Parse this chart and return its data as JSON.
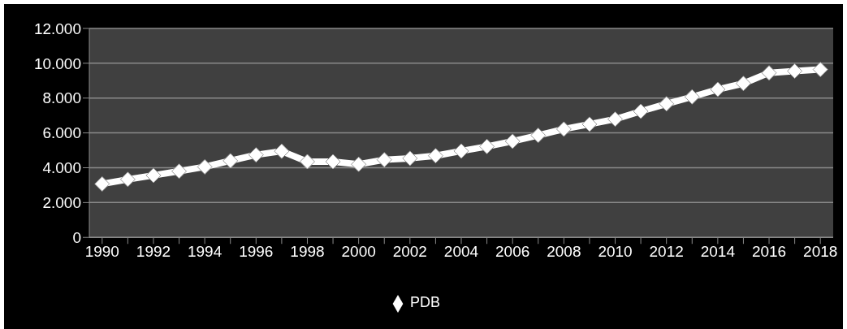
{
  "chart_data": {
    "type": "line",
    "categories": [
      "1990",
      null,
      "1992",
      null,
      "1994",
      null,
      "1996",
      null,
      "1998",
      null,
      "2000",
      null,
      "2002",
      null,
      "2004",
      null,
      "2006",
      null,
      "2008",
      null,
      "2010",
      null,
      "2012",
      null,
      "2014",
      null,
      "2016",
      null,
      "2018"
    ],
    "series": [
      {
        "name": "PDB",
        "color": "#ffffff",
        "values": [
          3070,
          3330,
          3560,
          3800,
          4050,
          4400,
          4740,
          4950,
          4350,
          4350,
          4200,
          4460,
          4540,
          4690,
          4960,
          5220,
          5520,
          5860,
          6220,
          6500,
          6790,
          7240,
          7670,
          8070,
          8500,
          8840,
          9450,
          9550,
          9640
        ]
      }
    ],
    "ylim": [
      0,
      12000
    ],
    "yticks": [
      {
        "value": 0,
        "label": "0"
      },
      {
        "value": 2000,
        "label": "2.000"
      },
      {
        "value": 4000,
        "label": "4.000"
      },
      {
        "value": 6000,
        "label": "6.000"
      },
      {
        "value": 8000,
        "label": "8.000"
      },
      {
        "value": 10000,
        "label": "10.000"
      },
      {
        "value": 12000,
        "label": "12.000"
      }
    ],
    "grid": "y",
    "legend": "bottom",
    "marker": "diamond",
    "line_style": "solid"
  }
}
